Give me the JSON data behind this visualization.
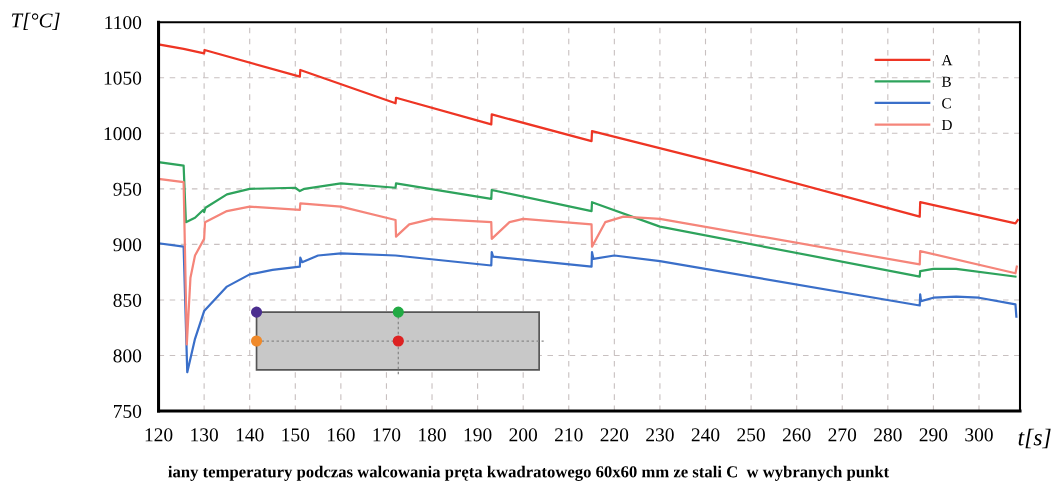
{
  "chart_data": {
    "type": "line",
    "xlabel": "t[s]",
    "ylabel": "T[°C]",
    "annotations": [
      "iany temperatury podczas walcowania pręta kwadratowego 60x60 mm ze stali C  w wybranych punkt"
    ],
    "xlim": [
      120,
      309
    ],
    "xticks": [
      120,
      130,
      140,
      150,
      160,
      170,
      180,
      190,
      200,
      210,
      220,
      230,
      240,
      250,
      260,
      270,
      280,
      290,
      300
    ],
    "ylim": [
      750,
      1100
    ],
    "yticks": [
      750,
      800,
      850,
      900,
      950,
      1000,
      1050,
      1100
    ],
    "grid": true,
    "legend": "top right",
    "marker": "none",
    "line_style": "solid",
    "series": [
      {
        "name": "A",
        "color": "#ee3524",
        "x": [
          120,
          125.5,
          130,
          130.1,
          151,
          151.1,
          172,
          172.1,
          193,
          193.1,
          215,
          215.1,
          250,
          287,
          287.1,
          308,
          308.5
        ],
        "values": [
          1080,
          1076,
          1072,
          1075,
          1051,
          1057,
          1027,
          1032,
          1008,
          1017,
          993,
          1002,
          966,
          925,
          938,
          919,
          922
        ]
      },
      {
        "name": "B",
        "color": "#2ea35c",
        "x": [
          120,
          125.5,
          126,
          128,
          129.8,
          130,
          130.3,
          135,
          140,
          150,
          151,
          152,
          160,
          172,
          172.1,
          193,
          193.1,
          215,
          215.1,
          230,
          287,
          287.1,
          290,
          295,
          308
        ],
        "values": [
          974,
          971,
          920,
          924,
          931,
          929,
          933,
          945,
          950,
          951,
          948,
          950,
          955,
          951,
          955,
          941,
          949,
          930,
          938,
          916,
          871,
          876,
          878,
          878,
          871
        ]
      },
      {
        "name": "C",
        "color": "#3a6fc9",
        "x": [
          120,
          125.5,
          126.3,
          128,
          130,
          135,
          140,
          145,
          151,
          151.1,
          151.5,
          155,
          160,
          172,
          193,
          193.1,
          193.4,
          215,
          215.1,
          215.4,
          220,
          230,
          287,
          287.1,
          287.3,
          290,
          295,
          300,
          308,
          308.2
        ],
        "values": [
          901,
          898,
          785,
          815,
          840,
          862,
          873,
          877,
          880,
          888,
          884,
          890,
          892,
          890,
          881,
          893,
          889,
          880,
          893,
          887,
          890,
          885,
          845,
          855,
          849,
          852,
          853,
          852,
          846,
          835
        ]
      },
      {
        "name": "D",
        "color": "#f5857a",
        "x": [
          120,
          125.5,
          126.2,
          127,
          128,
          130,
          130.2,
          135,
          140,
          151,
          151.1,
          160,
          172,
          172.1,
          175,
          180,
          193,
          193.1,
          197,
          200,
          215,
          215.1,
          218,
          222,
          230,
          287,
          287.1,
          308,
          308.3
        ],
        "values": [
          959,
          956,
          810,
          870,
          890,
          905,
          920,
          930,
          934,
          931,
          937,
          934,
          922,
          907,
          918,
          923,
          920,
          905,
          920,
          923,
          918,
          898,
          920,
          925,
          923,
          882,
          894,
          874,
          880
        ]
      }
    ]
  }
}
